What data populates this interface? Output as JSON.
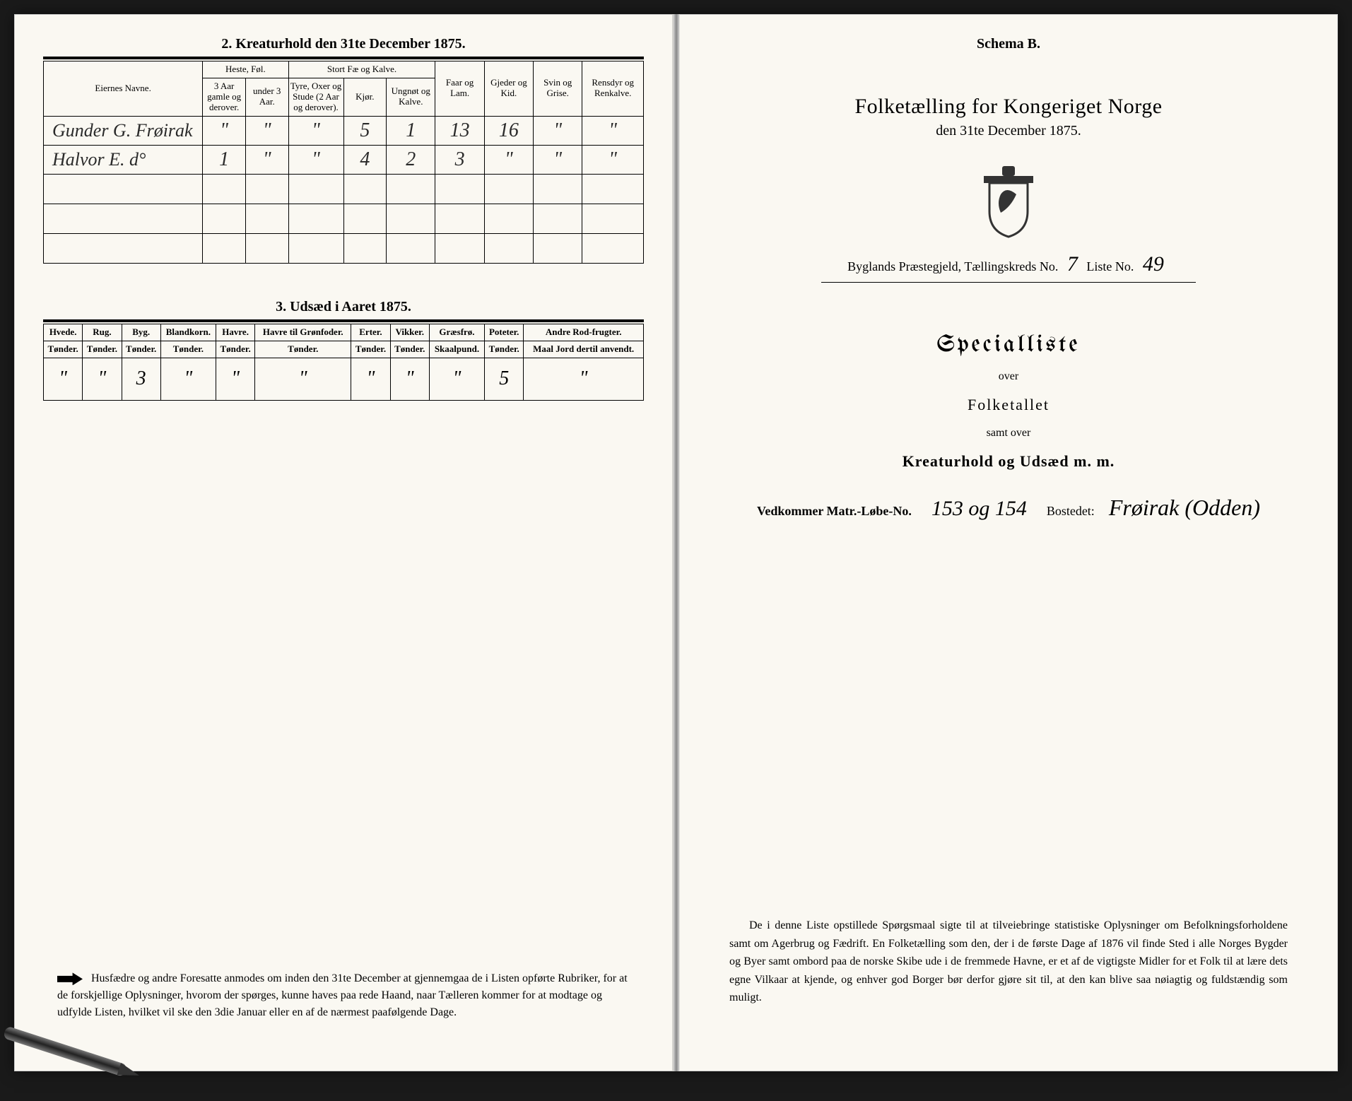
{
  "left": {
    "section2_title": "2. Kreaturhold den 31te December 1875.",
    "headers": {
      "owners": "Eiernes Navne.",
      "horses_group": "Heste, Føl.",
      "horse_old": "3 Aar gamle og derover.",
      "horse_young": "under 3 Aar.",
      "cattle_group": "Stort Fæ og Kalve.",
      "bulls": "Tyre, Oxer og Stude (2 Aar og derover).",
      "cows": "Kjør.",
      "young_cattle": "Ungnøt og Kalve.",
      "sheep": "Faar og Lam.",
      "goats": "Gjeder og Kid.",
      "pigs": "Svin og Grise.",
      "reindeer": "Rensdyr og Renkalve."
    },
    "rows": [
      {
        "name": "Gunder G. Frøirak",
        "c": [
          "\"",
          "\"",
          "\"",
          "5",
          "1",
          "13",
          "16",
          "\"",
          "\""
        ]
      },
      {
        "name": "Halvor E.   d°",
        "c": [
          "1",
          "\"",
          "\"",
          "4",
          "2",
          "3",
          "\"",
          "\"",
          "\""
        ]
      }
    ],
    "section3_title": "3. Udsæd i Aaret 1875.",
    "crop_headers": [
      {
        "t": "Hvede.",
        "s": "Tønder."
      },
      {
        "t": "Rug.",
        "s": "Tønder."
      },
      {
        "t": "Byg.",
        "s": "Tønder."
      },
      {
        "t": "Blandkorn.",
        "s": "Tønder."
      },
      {
        "t": "Havre.",
        "s": "Tønder."
      },
      {
        "t": "Havre til Grønfoder.",
        "s": "Tønder."
      },
      {
        "t": "Erter.",
        "s": "Tønder."
      },
      {
        "t": "Vikker.",
        "s": "Tønder."
      },
      {
        "t": "Græsfrø.",
        "s": "Skaalpund."
      },
      {
        "t": "Poteter.",
        "s": "Tønder."
      },
      {
        "t": "Andre Rod-frugter.",
        "s": "Maal Jord dertil anvendt."
      }
    ],
    "crop_row": [
      "\"",
      "\"",
      "3",
      "\"",
      "\"",
      "\"",
      "\"",
      "\"",
      "\"",
      "5",
      "\""
    ],
    "footnote": "Husfædre og andre Foresatte anmodes om inden den 31te December at gjennemgaa de i Listen opførte Rubriker, for at de forskjellige Oplysninger, hvorom der spørges, kunne haves paa rede Haand, naar Tælleren kommer for at modtage og udfylde Listen, hvilket vil ske den 3die Januar eller en af de nærmest paafølgende Dage."
  },
  "right": {
    "schema": "Schema B.",
    "title": "Folketælling for Kongeriget Norge",
    "date": "den 31te December 1875.",
    "parish_label": "Byglands Præstegjeld, Tællingskreds No.",
    "kreds_no": "7",
    "liste_label": "Liste No.",
    "liste_no": "49",
    "specialliste": "Specialliste",
    "over": "over",
    "folketallet": "Folketallet",
    "samt_over": "samt over",
    "kreatur": "Kreaturhold og Udsæd m. m.",
    "matr_label": "Vedkommer Matr.-Løbe-No.",
    "matr_val": "153 og 154",
    "bostedet_label": "Bostedet:",
    "bostedet_val": "Frøirak (Odden)",
    "bottom": "De i denne Liste opstillede Spørgsmaal sigte til at tilveiebringe statistiske Oplysninger om Befolkningsforholdene samt om Agerbrug og Fædrift. En Folketælling som den, der i de første Dage af 1876 vil finde Sted i alle Norges Bygder og Byer samt ombord paa de norske Skibe ude i de fremmede Havne, er et af de vigtigste Midler for et Folk til at lære dets egne Vilkaar at kjende, og enhver god Borger bør derfor gjøre sit til, at den kan blive saa nøiagtig og fuldstændig som muligt."
  },
  "colors": {
    "ink": "#1a1a1a",
    "paper": "#faf8f2"
  }
}
